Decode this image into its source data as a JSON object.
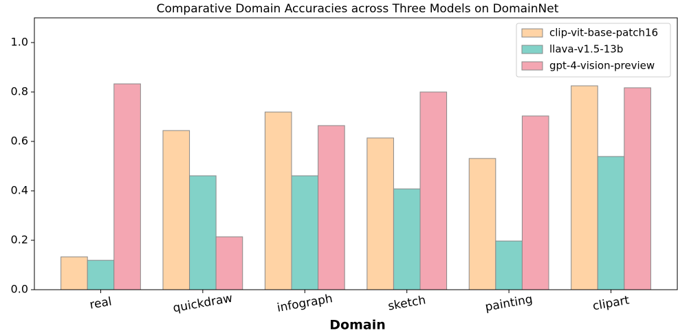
{
  "chart_data": {
    "type": "bar",
    "title": "Comparative Domain Accuracies across Three Models on DomainNet",
    "x_label": "Domain",
    "categories": [
      "real",
      "quickdraw",
      "infograph",
      "sketch",
      "painting",
      "clipart"
    ],
    "series": [
      {
        "name": "clip-vit-base-patch16",
        "color": "#ffd3a5",
        "values": [
          0.133,
          0.644,
          0.719,
          0.614,
          0.531,
          0.825
        ]
      },
      {
        "name": "llava-v1.5-13b",
        "color": "#82d2c8",
        "values": [
          0.119,
          0.461,
          0.461,
          0.408,
          0.197,
          0.539
        ]
      },
      {
        "name": "gpt-4-vision-preview",
        "color": "#f4a6b2",
        "values": [
          0.833,
          0.214,
          0.664,
          0.8,
          0.703,
          0.817
        ]
      }
    ],
    "ylim": [
      0,
      1.1
    ],
    "yticks": [
      {
        "value": 0,
        "label": "0.0"
      },
      0.2,
      0.4,
      0.6,
      0.8,
      {
        "value": 1,
        "label": "1.0"
      }
    ],
    "legend": "upper right"
  }
}
